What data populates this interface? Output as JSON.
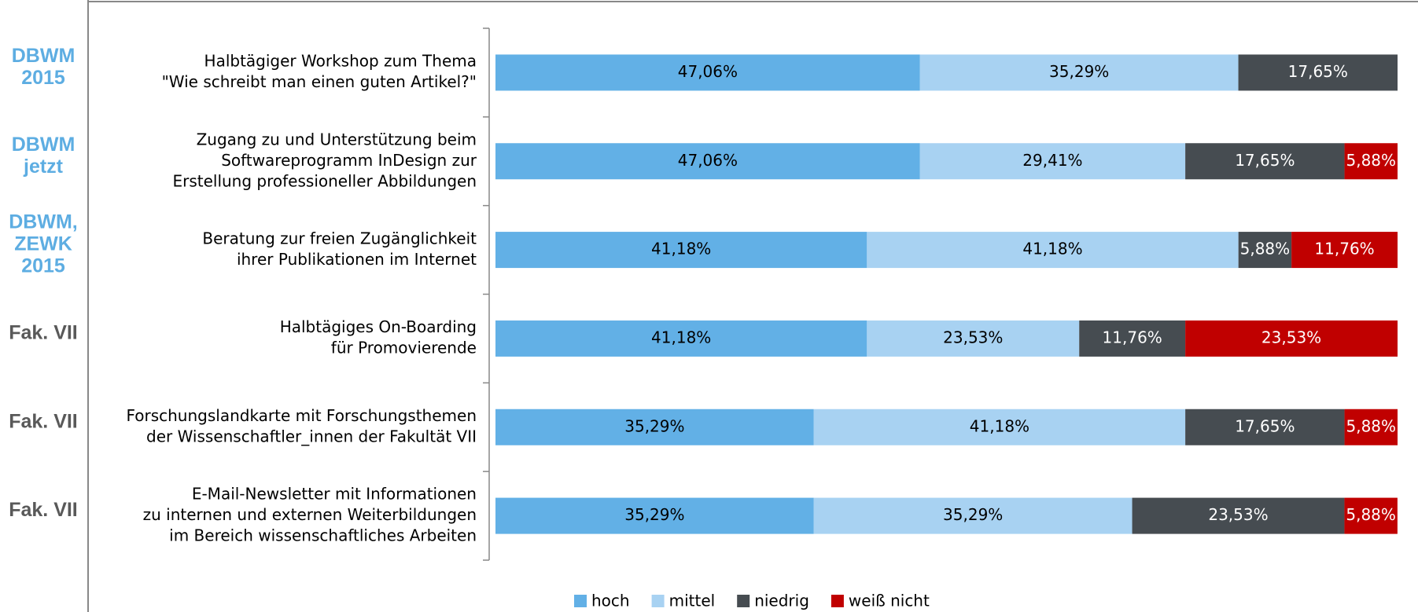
{
  "chart_data": {
    "type": "stacked-bar-horizontal",
    "categories": [
      [
        "Halbtägiger Workshop zum Thema",
        "\"Wie schreibt man einen guten Artikel?\""
      ],
      [
        "Zugang zu und Unterstützung beim",
        "Softwareprogramm InDesign zur",
        "Erstellung professioneller Abbildungen"
      ],
      [
        "Beratung zur freien Zugänglichkeit",
        "ihrer Publikationen im Internet"
      ],
      [
        "Halbtägiges On-Boarding",
        "für Promovierende"
      ],
      [
        "Forschungslandkarte mit Forschungsthemen",
        "der Wissenschaftler_innen der Fakultät VII"
      ],
      [
        "E-Mail-Newsletter mit Informationen",
        "zu internen und externen Weiterbildungen",
        "im Bereich wissenschaftliches Arbeiten"
      ]
    ],
    "row_notes": [
      [
        "DBWM",
        "2015"
      ],
      [
        "DBWM",
        "jetzt"
      ],
      [
        "DBWM,",
        "ZEWK",
        "2015"
      ],
      [
        "Fak. VII"
      ],
      [
        "Fak. VII"
      ],
      [
        "Fak. VII"
      ]
    ],
    "row_note_colors": [
      "#5dade2",
      "#5dade2",
      "#5dade2",
      "#595959",
      "#595959",
      "#595959"
    ],
    "xlim": [
      0,
      100
    ],
    "series": [
      {
        "name": "hoch",
        "color": "#62b0e6",
        "label_color": "#000000",
        "values": [
          47.06,
          47.06,
          41.18,
          41.18,
          35.29,
          35.29
        ],
        "value_labels": [
          "47,06%",
          "47,06%",
          "41,18%",
          "41,18%",
          "35,29%",
          "35,29%"
        ]
      },
      {
        "name": "mittel",
        "color": "#a8d2f2",
        "label_color": "#000000",
        "values": [
          35.29,
          29.41,
          41.18,
          23.53,
          41.18,
          35.29
        ],
        "value_labels": [
          "35,29%",
          "29,41%",
          "41,18%",
          "23,53%",
          "41,18%",
          "35,29%"
        ]
      },
      {
        "name": "niedrig",
        "color": "#464c51",
        "label_color": "#ffffff",
        "values": [
          17.65,
          17.65,
          5.88,
          11.76,
          17.65,
          23.53
        ],
        "value_labels": [
          "17,65%",
          "17,65%",
          "5,88%",
          "11,76%",
          "17,65%",
          "23,53%"
        ]
      },
      {
        "name": "weiß nicht",
        "color": "#c00000",
        "label_color": "#ffffff",
        "values": [
          null,
          5.88,
          11.76,
          23.53,
          5.88,
          5.88
        ],
        "value_labels": [
          null,
          "5,88%",
          "11,76%",
          "23,53%",
          "5,88%",
          "5,88%"
        ]
      }
    ]
  }
}
